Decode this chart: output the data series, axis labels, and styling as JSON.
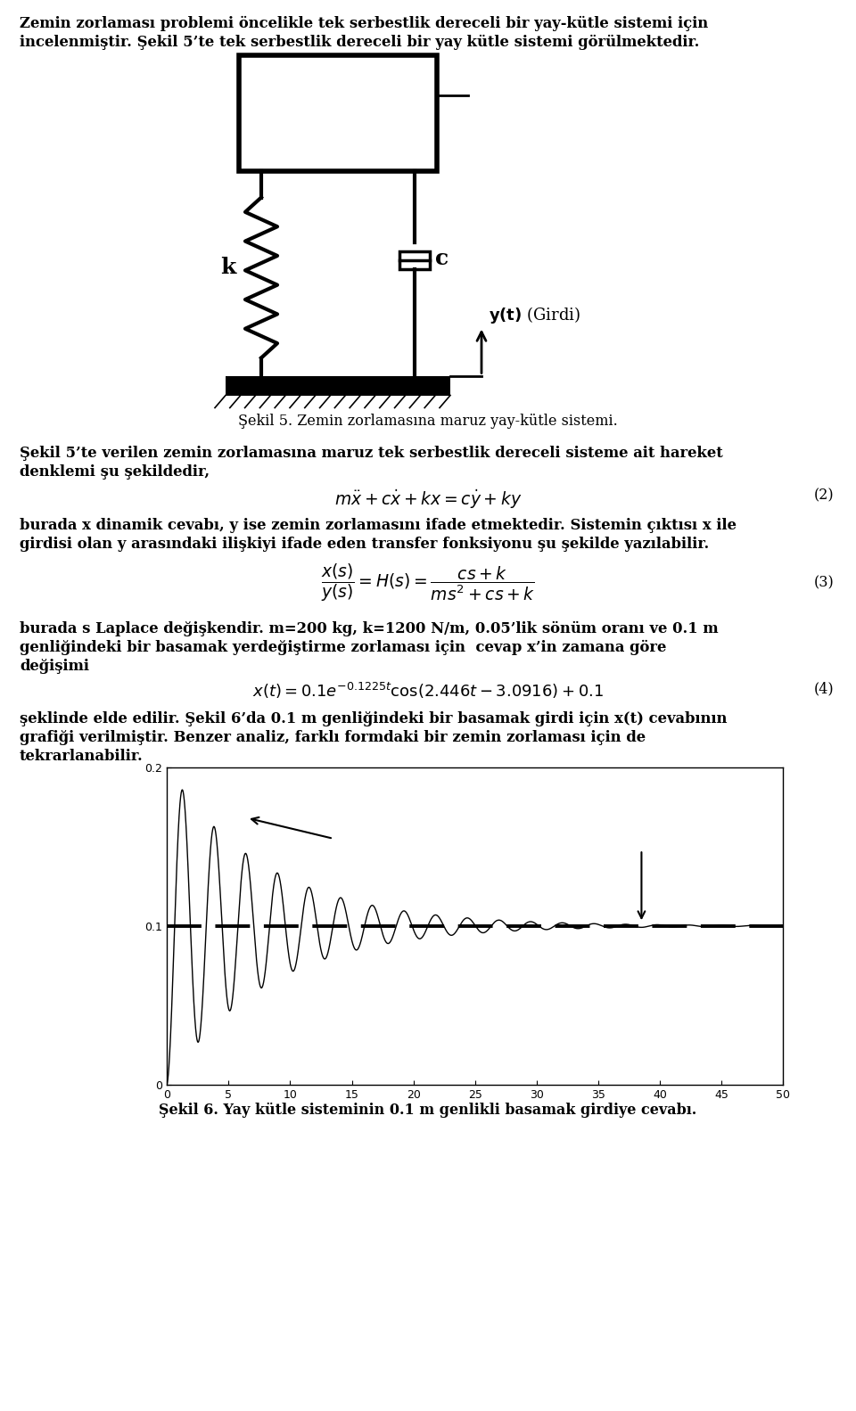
{
  "title_text1": "Zemin zorlaması problemi öncelikle tek serbestlik dereceli bir yay-kütle sistemi için",
  "title_text2": "incelenmiştir. Şekil 5’te tek serbestlik dereceli bir yay kütle sistemi görülmektedir.",
  "fig5_caption": "Şekil 5. Zemin zorlamasına maruz yay-kütle sistemi.",
  "para1_line1": "Şekil 5’te verilen zemin zorlamasına maruz tek serbestlik dereceli sisteme ait hareket",
  "para1_line2": "denklemi şu şekildedir,",
  "eq2_label": "(2)",
  "para2_line1": "burada x dinamik cevabı, y ise zemin zorlamasını ifade etmektedir. Sistemin çıktısı x ile",
  "para2_line2": "girdisi olan y arasındaki ilişkiyi ifade eden transfer fonksiyonu şu şekilde yazılabilir.",
  "eq3_label": "(3)",
  "para3_line1": "burada s Laplace değişkendir. m=200 kg, k=1200 N/m, 0.05’lik sönüm oranı ve 0.1 m",
  "para3_line2": "genliğindeki bir basamak yerdeğiştirme zorlaması için  cevap x’in zamana göre",
  "para3_line3": "değişimi",
  "eq4_label": "(4)",
  "para4_line1": "şeklinde elde edilir. Şekil 6’da 0.1 m genliğindeki bir basamak girdi için x(t) cevabının",
  "para4_line2": "grafiği verilmiştir. Benzer analiz, farklı formdaki bir zemin zorlaması için de",
  "para4_line3": "tekrarlanabilir.",
  "fig6_caption": "Şekil 6. Yay kütle sisteminin 0.1 m genlikli basamak girdiye cevabı.",
  "bg_color": "#ffffff",
  "text_color": "#000000",
  "graph_xlim": [
    0,
    50
  ],
  "graph_ylim": [
    0,
    0.2
  ],
  "graph_xticks": [
    0,
    5,
    10,
    15,
    20,
    25,
    30,
    35,
    40,
    45,
    50
  ],
  "graph_yticks": [
    0,
    0.1,
    0.2
  ]
}
